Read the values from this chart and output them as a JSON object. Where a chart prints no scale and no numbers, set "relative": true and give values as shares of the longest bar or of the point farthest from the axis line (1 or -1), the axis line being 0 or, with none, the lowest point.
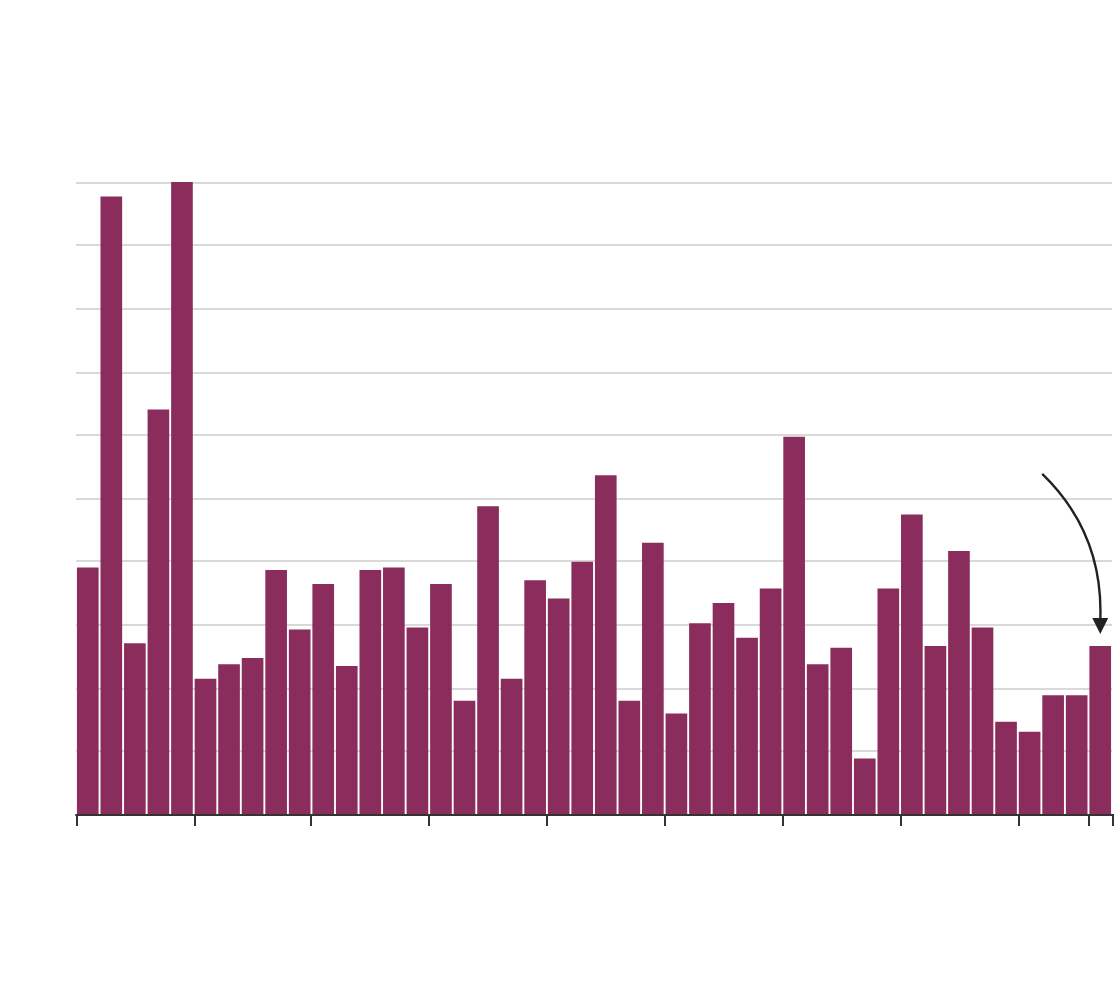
{
  "chart_data": {
    "type": "bar",
    "relative": true,
    "grid": "y",
    "color": "#8b2d5c",
    "categories": [
      null,
      null,
      null,
      null,
      null,
      null,
      null,
      null,
      null,
      null,
      null,
      null,
      null,
      null,
      null,
      null,
      null,
      null,
      null,
      null,
      null,
      null,
      null,
      null,
      null,
      null,
      null,
      null,
      null,
      null,
      null,
      null,
      null,
      null,
      null,
      null,
      null,
      null,
      null,
      null,
      null,
      null,
      null,
      null
    ],
    "values": [
      0.39,
      0.977,
      0.27,
      0.64,
      1,
      0.214,
      0.237,
      0.247,
      0.386,
      0.292,
      0.364,
      0.234,
      0.386,
      0.39,
      0.295,
      0.364,
      0.179,
      0.487,
      0.214,
      0.37,
      0.341,
      0.399,
      0.536,
      0.179,
      0.429,
      0.159,
      0.302,
      0.334,
      0.279,
      0.357,
      0.597,
      0.237,
      0.263,
      0.088,
      0.357,
      0.474,
      0.266,
      0.416,
      0.295,
      0.146,
      0.13,
      0.188,
      0.188,
      0.266
    ]
  }
}
